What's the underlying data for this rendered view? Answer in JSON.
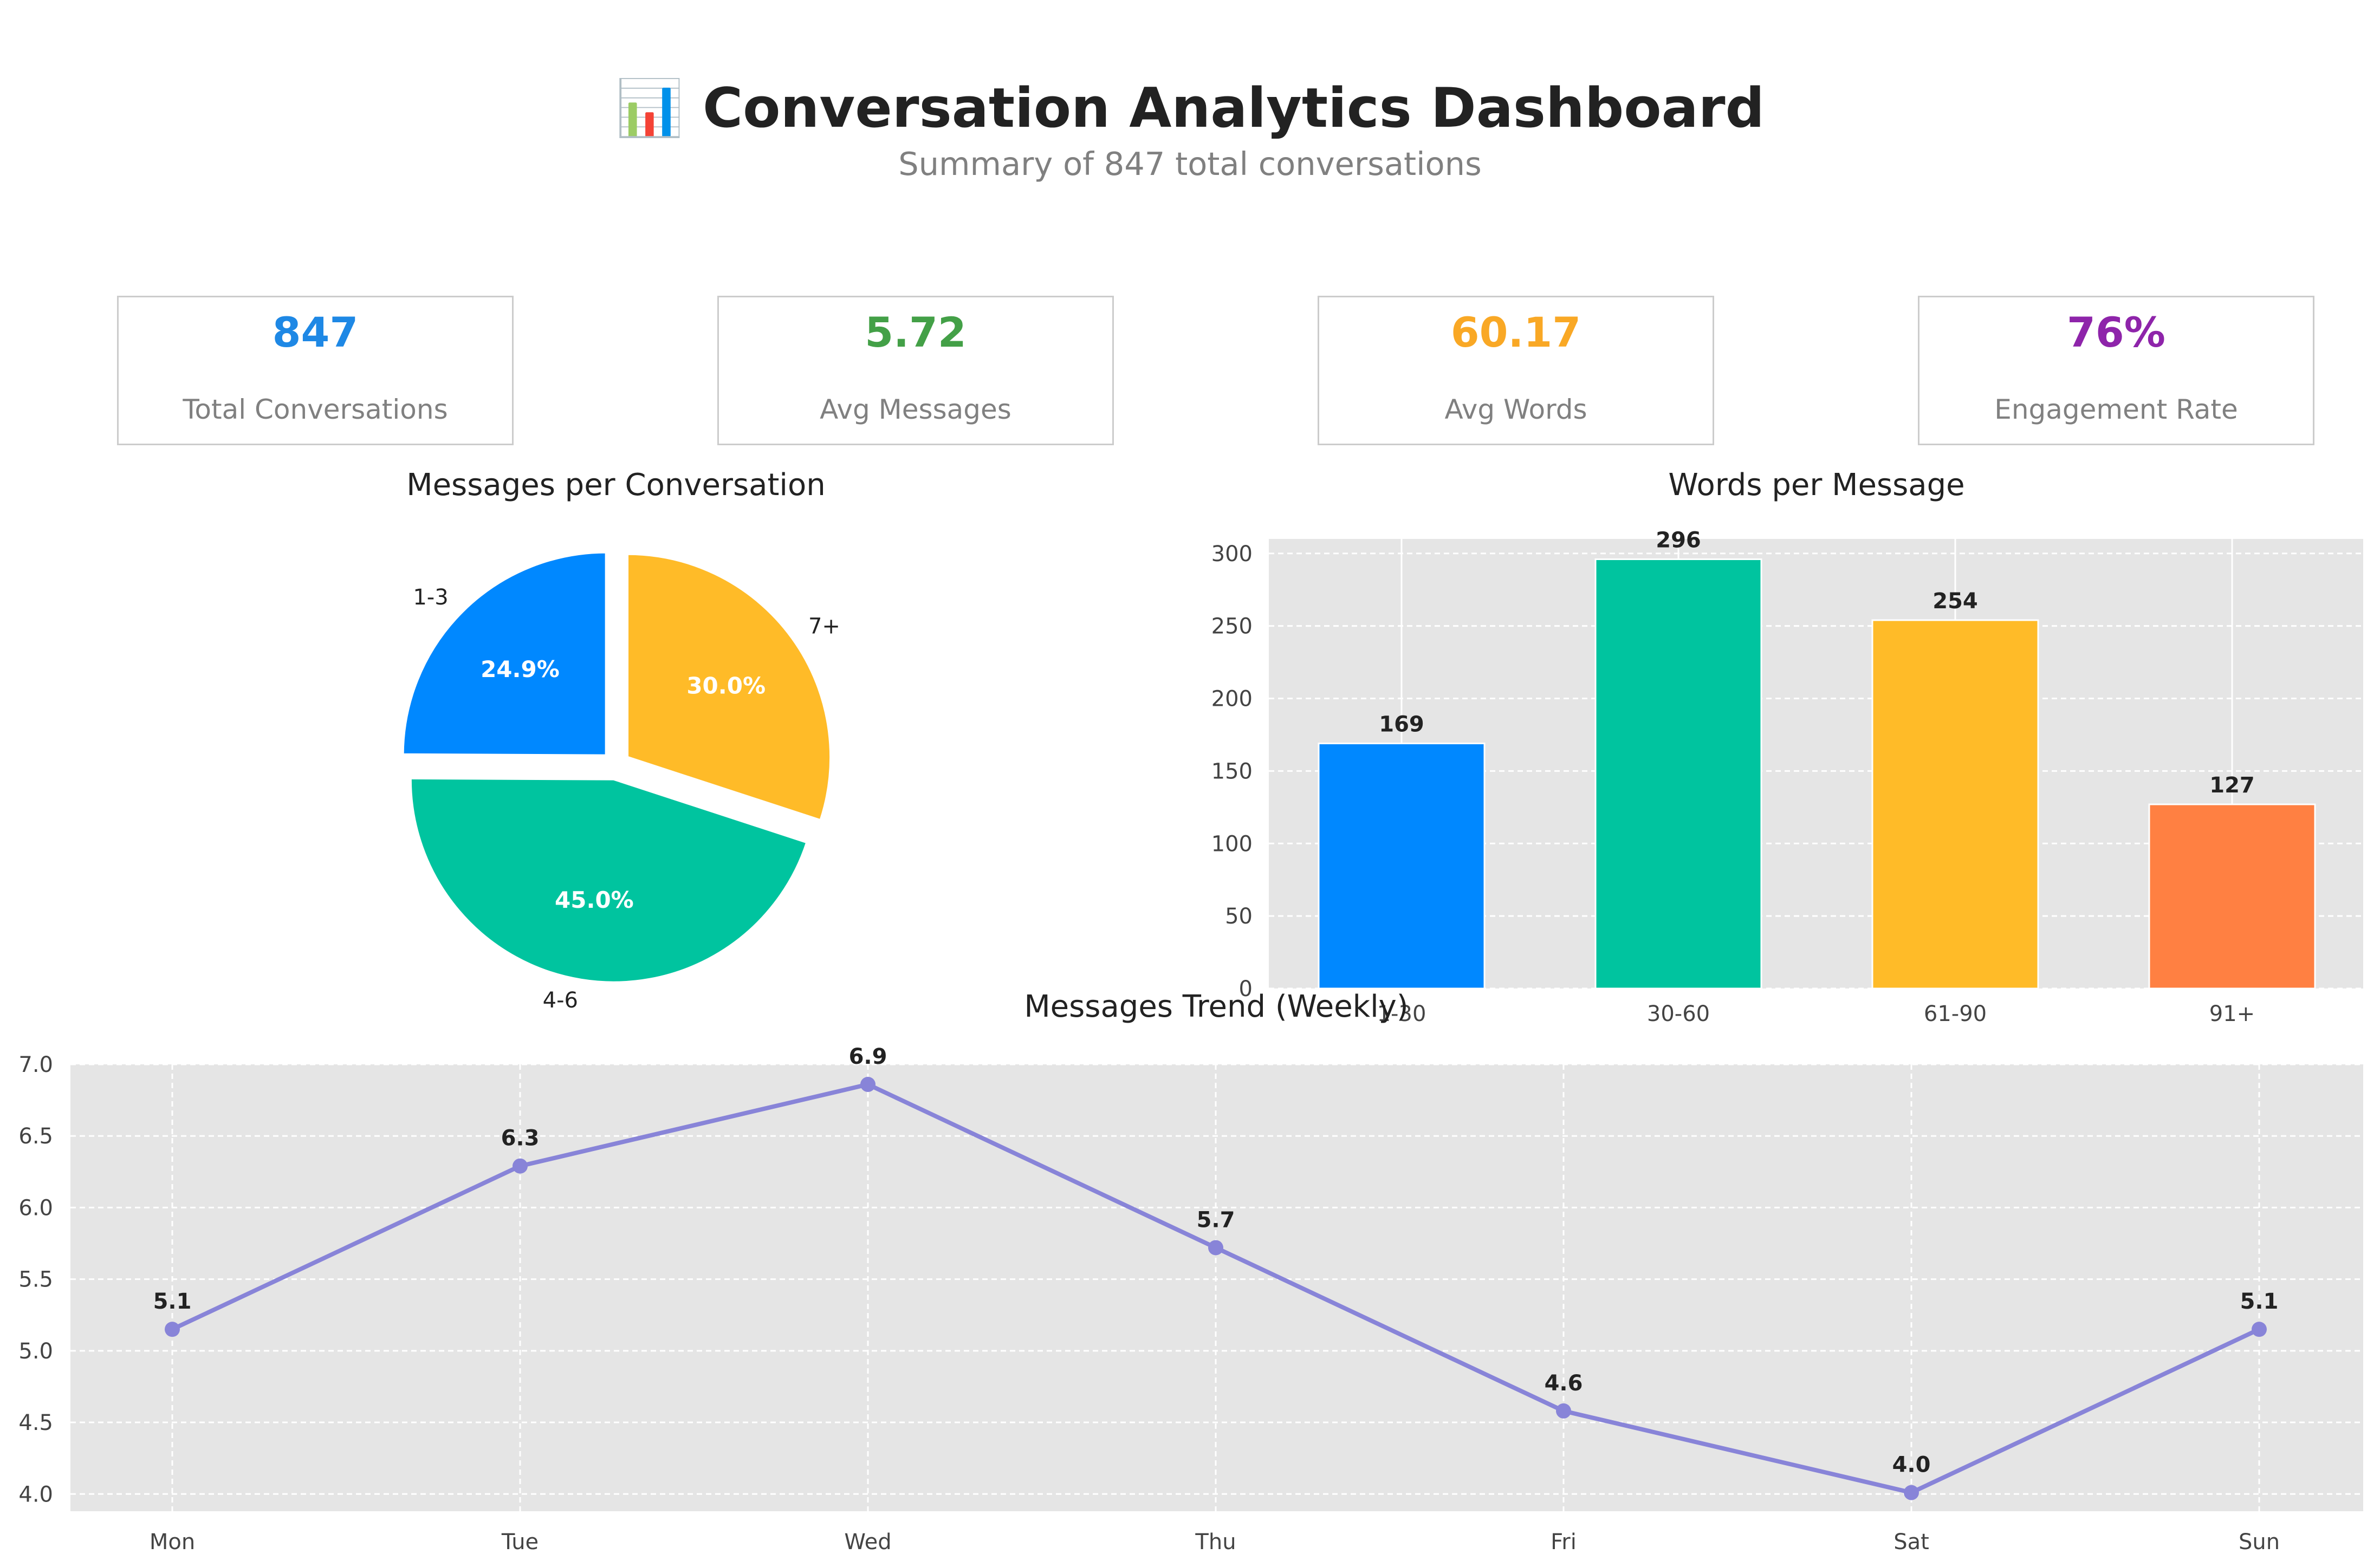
{
  "header": {
    "icon": "chart-icon",
    "title": "📊 Conversation Analytics Dashboard",
    "subtitle": "Summary of 847 total conversations"
  },
  "kpis": [
    {
      "value": "847",
      "label": "Total Conversations",
      "color": "#1e88e5"
    },
    {
      "value": "5.72",
      "label": "Avg Messages",
      "color": "#43a047"
    },
    {
      "value": "60.17",
      "label": "Avg Words",
      "color": "#f9a825"
    },
    {
      "value": "76%",
      "label": "Engagement Rate",
      "color": "#8e24aa"
    }
  ],
  "chart_data": [
    {
      "type": "pie",
      "title": "Messages per Conversation",
      "categories": [
        "1-3",
        "4-6",
        "7+"
      ],
      "values": [
        24.9,
        45.0,
        30.0
      ],
      "value_labels": [
        "24.9%",
        "45.0%",
        "30.0%"
      ],
      "colors": [
        "#0088ff",
        "#00c49f",
        "#ffbb28"
      ],
      "exploded": true
    },
    {
      "type": "bar",
      "title": "Words per Message",
      "categories": [
        "1-30",
        "30-60",
        "61-90",
        "91+"
      ],
      "values": [
        169,
        296,
        254,
        127
      ],
      "colors": [
        "#0088ff",
        "#00c49f",
        "#ffbb28",
        "#ff8042"
      ],
      "ylim": [
        0,
        310
      ],
      "yticks": [
        0,
        50,
        100,
        150,
        200,
        250,
        300
      ],
      "grid": true
    },
    {
      "type": "line",
      "title": "Messages Trend (Weekly)",
      "categories": [
        "Mon",
        "Tue",
        "Wed",
        "Thu",
        "Fri",
        "Sat",
        "Sun"
      ],
      "values": [
        5.15,
        6.29,
        6.86,
        5.72,
        4.58,
        4.01,
        5.15
      ],
      "value_labels": [
        "5.1",
        "6.3",
        "6.9",
        "5.7",
        "4.6",
        "4.0",
        "5.1"
      ],
      "color": "#8884d8",
      "ylim": [
        3.88,
        7.0
      ],
      "yticks": [
        "4.0",
        "4.5",
        "5.0",
        "5.5",
        "6.0",
        "6.5",
        "7.0"
      ],
      "grid": true
    }
  ]
}
